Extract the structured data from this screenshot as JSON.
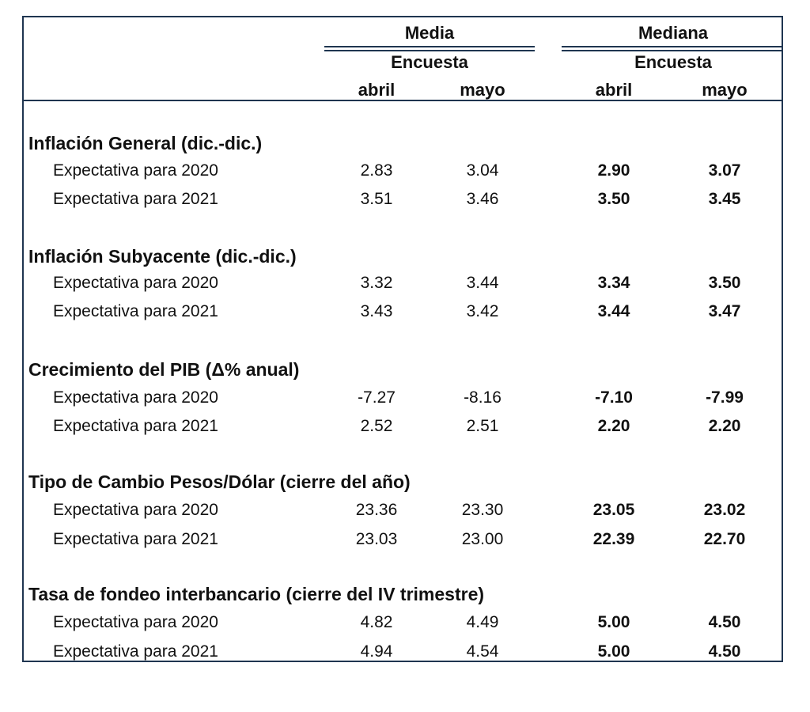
{
  "header": {
    "group_mean": "Media",
    "group_median": "Mediana",
    "survey_label_mean": "Encuesta",
    "survey_label_median": "Encuesta",
    "months": [
      "abril",
      "mayo",
      "abril",
      "mayo"
    ]
  },
  "sections": [
    {
      "title": "Inflación General (dic.-dic.)",
      "rows": [
        {
          "label": "Expectativa para 2020",
          "values": [
            "2.83",
            "3.04",
            "2.90",
            "3.07"
          ]
        },
        {
          "label": "Expectativa para 2021",
          "values": [
            "3.51",
            "3.46",
            "3.50",
            "3.45"
          ]
        }
      ]
    },
    {
      "title": "Inflación Subyacente (dic.-dic.)",
      "rows": [
        {
          "label": "Expectativa para 2020",
          "values": [
            "3.32",
            "3.44",
            "3.34",
            "3.50"
          ]
        },
        {
          "label": "Expectativa para 2021",
          "values": [
            "3.43",
            "3.42",
            "3.44",
            "3.47"
          ]
        }
      ]
    },
    {
      "title": "Crecimiento del PIB (Δ% anual)",
      "rows": [
        {
          "label": "Expectativa para 2020",
          "values": [
            "-7.27",
            "-8.16",
            "-7.10",
            "-7.99"
          ]
        },
        {
          "label": "Expectativa para 2021",
          "values": [
            "2.52",
            "2.51",
            "2.20",
            "2.20"
          ]
        }
      ]
    },
    {
      "title": "Tipo de Cambio Pesos/Dólar (cierre del año)",
      "rows": [
        {
          "label": "Expectativa para 2020",
          "values": [
            "23.36",
            "23.30",
            "23.05",
            "23.02"
          ]
        },
        {
          "label": "Expectativa para 2021",
          "values": [
            "23.03",
            "23.00",
            "22.39",
            "22.70"
          ]
        }
      ]
    },
    {
      "title": "Tasa de fondeo interbancario (cierre del IV trimestre)",
      "rows": [
        {
          "label": "Expectativa para 2020",
          "values": [
            "4.82",
            "4.49",
            "5.00",
            "4.50"
          ]
        },
        {
          "label": "Expectativa para 2021",
          "values": [
            "4.94",
            "4.54",
            "5.00",
            "4.50"
          ]
        }
      ]
    }
  ]
}
